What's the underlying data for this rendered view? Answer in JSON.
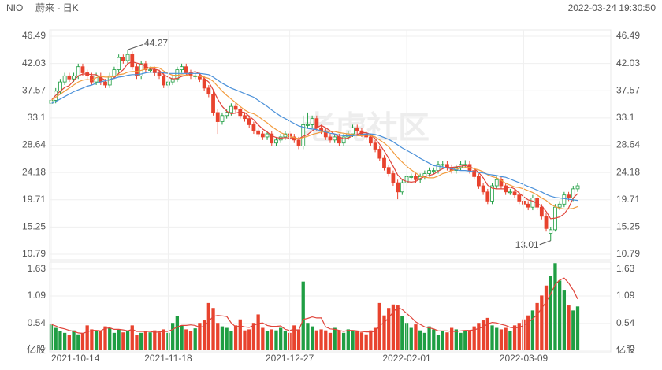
{
  "chart_data": [
    {
      "type": "candlestick",
      "title": "NIO",
      "subtitle": "蔚来 - 日K",
      "timestamp": "2022-03-24 19:30:50",
      "watermark": "老虎社区",
      "up_color": "#1f9e43",
      "down_color": "#e8432e",
      "grid": true,
      "ylim": [
        10.79,
        46.49
      ],
      "yticks": [
        10.79,
        15.25,
        19.71,
        24.18,
        28.64,
        33.1,
        37.57,
        42.03,
        46.49
      ],
      "open": [
        35.5,
        36,
        37.5,
        39,
        40,
        39.5,
        40,
        41.5,
        40.5,
        40,
        39,
        40,
        39,
        38.5,
        40,
        41,
        43,
        42.5,
        43.5,
        41.5,
        40,
        42,
        41,
        41,
        40.5,
        40,
        38.5,
        39,
        39.5,
        41,
        41.5,
        40.5,
        40,
        40,
        39.5,
        38,
        37,
        34,
        32.5,
        33.5,
        34,
        35,
        34.5,
        33.5,
        33,
        32,
        31,
        30.5,
        30,
        30.5,
        29,
        29.5,
        30,
        30.5,
        30,
        29.5,
        28.5,
        32,
        32,
        33,
        31.5,
        31,
        30,
        29.5,
        30,
        29,
        30,
        30.5,
        31.5,
        31,
        30.5,
        30,
        29,
        28,
        26.5,
        25,
        24,
        22.5,
        21,
        22.5,
        23.5,
        23.5,
        23,
        23.5,
        24,
        24.5,
        24.5,
        25.5,
        25.5,
        25,
        24.5,
        25,
        25.5,
        25.5,
        24.5,
        23.5,
        22,
        21,
        19.5,
        22,
        23,
        22,
        21,
        21,
        20.5,
        19.5,
        19,
        18.5,
        20,
        18.5,
        17,
        14.2,
        14.8,
        18.5,
        19,
        20.5,
        20,
        21.5
      ],
      "high": [
        36.5,
        38,
        39.5,
        40.5,
        40.5,
        40.5,
        42,
        42,
        41,
        40.5,
        40.5,
        40.5,
        39.5,
        40.5,
        41.5,
        43.5,
        43.5,
        44.27,
        44,
        42,
        42.5,
        42.5,
        41.5,
        41.5,
        41,
        40.5,
        39.5,
        40,
        41.5,
        42,
        42,
        41,
        40.5,
        40.5,
        40,
        38.5,
        37.5,
        34.5,
        34,
        34.5,
        35.5,
        35.5,
        35,
        34,
        33.5,
        32.5,
        31.5,
        31,
        31,
        31,
        30,
        30.5,
        31,
        31,
        30.5,
        30,
        33.5,
        34,
        33.5,
        33.5,
        32,
        31.5,
        30.5,
        30.5,
        30.5,
        30.5,
        31,
        32,
        32,
        31.5,
        31,
        30.5,
        29.5,
        28.5,
        27,
        25.5,
        24.5,
        23,
        23,
        24,
        24,
        24,
        24,
        24.5,
        25,
        25,
        26,
        26,
        26,
        25.5,
        25.5,
        26,
        26.2,
        26,
        25,
        24,
        22.5,
        21.5,
        22.5,
        23.5,
        23.5,
        22.5,
        21.5,
        21.5,
        21,
        20,
        19.5,
        20.5,
        20.5,
        19,
        17.5,
        15.3,
        19,
        19.5,
        21,
        21,
        22,
        22.5
      ],
      "low": [
        35,
        35.5,
        37,
        38.5,
        39,
        39,
        39.5,
        40,
        39.5,
        38.5,
        38.5,
        38.5,
        38,
        38,
        39.5,
        40.5,
        42,
        42,
        41,
        39.5,
        39.5,
        40.5,
        40.5,
        40,
        39.5,
        38,
        38,
        38.5,
        39,
        40.5,
        40,
        39.5,
        39.5,
        39,
        37.5,
        36.5,
        33.5,
        30.5,
        32,
        33,
        33.5,
        34,
        33,
        32.5,
        31.5,
        30.5,
        30,
        29.5,
        29.5,
        28.5,
        28.5,
        29,
        29.5,
        29.5,
        29,
        28,
        28,
        31.5,
        31.5,
        31,
        30.5,
        29.5,
        29,
        29,
        28.5,
        28.5,
        29.5,
        30,
        30.5,
        30,
        29.5,
        28.5,
        27.5,
        26,
        24.5,
        23.5,
        22,
        19.8,
        20.5,
        22,
        23,
        22.5,
        22.5,
        23,
        23.5,
        24,
        24,
        25,
        24.5,
        24,
        24,
        24.5,
        25,
        24,
        23,
        21.5,
        20.5,
        19,
        19,
        21.5,
        21.5,
        20.5,
        20.5,
        20,
        19,
        18.5,
        18,
        18,
        18,
        16.5,
        14.5,
        13.01,
        14.5,
        18,
        18.5,
        19.5,
        19.5,
        21
      ],
      "close": [
        36,
        37.5,
        39,
        40,
        39.5,
        40,
        41.5,
        40.5,
        40,
        39,
        40,
        39,
        38.5,
        40,
        41,
        43,
        42.5,
        43.5,
        41.5,
        40,
        42,
        41,
        41,
        40.5,
        40,
        38.5,
        39,
        39.5,
        41,
        41.5,
        40.5,
        40,
        40,
        39.5,
        38,
        37,
        34,
        32.5,
        33.5,
        34,
        35,
        34.5,
        33.5,
        33,
        32,
        31,
        30.5,
        30,
        30.5,
        29,
        29.5,
        30,
        30.5,
        30,
        29.5,
        28.5,
        32,
        32,
        33,
        31.5,
        31,
        30,
        29.5,
        30,
        29,
        30,
        30.5,
        31.5,
        31,
        30.5,
        30,
        29,
        28,
        26.5,
        25,
        24,
        22.5,
        21,
        22.5,
        23.5,
        23.5,
        23,
        23.5,
        24,
        24.5,
        24.5,
        25.5,
        25.5,
        25,
        24.5,
        25,
        25.5,
        25.5,
        24.5,
        23.5,
        22,
        21,
        19.5,
        22,
        23,
        22,
        21,
        21,
        20.5,
        19.5,
        19,
        18.5,
        20,
        18.5,
        17,
        15,
        14.8,
        18.5,
        19,
        20.5,
        20,
        21.5,
        22
      ],
      "series": [
        {
          "color": "#e0443a",
          "values": [
            36,
            36.8,
            37.5,
            38.1,
            38.4,
            39.2,
            40,
            40.3,
            40.3,
            40.2,
            40.2,
            39.7,
            39.3,
            39.3,
            39.7,
            40.4,
            41,
            42,
            42.3,
            42.1,
            41.9,
            41.6,
            41.1,
            41.1,
            40.9,
            40.2,
            39.8,
            39.5,
            39.6,
            39.9,
            40.1,
            40.5,
            40.7,
            40.3,
            39.6,
            39,
            37.7,
            36.2,
            35,
            34.2,
            33.8,
            33.9,
            34.1,
            34,
            33.4,
            32.8,
            32,
            31.3,
            30.8,
            30.2,
            29.9,
            29.8,
            29.9,
            29.8,
            29.9,
            29.7,
            30.1,
            30.4,
            31,
            31.5,
            31.9,
            31.5,
            31,
            30.4,
            30,
            29.7,
            29.8,
            30.2,
            30.4,
            30.7,
            30.7,
            30.4,
            29.7,
            28.8,
            27.7,
            26.5,
            25.2,
            23.8,
            23,
            22.7,
            22.6,
            22.7,
            23.2,
            23.5,
            23.7,
            23.9,
            24.4,
            24.8,
            25,
            25,
            25.1,
            25.2,
            25.3,
            25.1,
            24.8,
            24.2,
            23.3,
            22.1,
            21.6,
            21.5,
            21.5,
            21.5,
            21.8,
            21.5,
            20.8,
            20.2,
            19.7,
            19.5,
            19.1,
            18.7,
            17.8,
            16.6,
            16.7,
            16.9,
            17.4,
            18.4,
            20,
            20.7
          ]
        },
        {
          "color": "#f29b3d",
          "values": [
            36,
            36.5,
            37,
            37.5,
            38,
            38.5,
            39,
            39.3,
            39.4,
            39.3,
            39.7,
            39.9,
            39.8,
            39.8,
            39.9,
            40.2,
            40.3,
            40.6,
            40.7,
            40.7,
            40.9,
            41.1,
            41.4,
            41.4,
            41.3,
            40.8,
            40.4,
            40.1,
            40.1,
            40.2,
            40.1,
            40,
            40,
            39.9,
            39.8,
            39.6,
            39.1,
            38.3,
            37.5,
            36.8,
            36.2,
            35.6,
            35,
            34.4,
            34,
            33.8,
            33.4,
            32.8,
            32.3,
            31.7,
            31.2,
            30.7,
            30.4,
            30.1,
            29.9,
            29.7,
            29.9,
            30.1,
            30.4,
            30.6,
            30.8,
            30.8,
            30.9,
            30.9,
            30.7,
            30.6,
            30.5,
            30.4,
            30.2,
            30.2,
            30.3,
            30.2,
            30,
            29.5,
            29,
            28.4,
            27.5,
            26.6,
            25.9,
            25.2,
            24.6,
            24.1,
            23.6,
            23.4,
            23.3,
            23.3,
            23.6,
            24,
            24.2,
            24.5,
            24.7,
            24.9,
            25,
            25,
            24.8,
            24.6,
            24.3,
            23.8,
            23.5,
            23.3,
            22.9,
            22.4,
            22.1,
            21.8,
            21.7,
            21.5,
            21.2,
            20.9,
            20.5,
            20,
            19.6,
            19,
            18.6,
            18.3,
            18.2,
            18.2,
            18.3,
            18.6
          ]
        },
        {
          "color": "#4a90d9",
          "values": [
            35.5,
            35.8,
            36.2,
            36.6,
            37,
            37.4,
            37.7,
            38,
            38.3,
            38.5,
            38.8,
            39,
            39.2,
            39.4,
            39.6,
            39.8,
            39.9,
            40.1,
            40.2,
            40.2,
            40.3,
            40.5,
            40.6,
            40.6,
            40.6,
            40.5,
            40.4,
            40.4,
            40.4,
            40.4,
            40.4,
            40.4,
            40.4,
            40.4,
            40.3,
            40.2,
            39.8,
            39.3,
            38.8,
            38.4,
            38,
            37.7,
            37.4,
            37.1,
            36.8,
            36.5,
            36,
            35.5,
            35,
            34.4,
            33.9,
            33.4,
            33,
            32.6,
            32.2,
            31.8,
            31.6,
            31.4,
            31.3,
            31.2,
            31,
            30.8,
            30.6,
            30.5,
            30.3,
            30.2,
            30.2,
            30.2,
            30.3,
            30.4,
            30.5,
            30.5,
            30.4,
            30.2,
            29.9,
            29.6,
            29.2,
            28.7,
            28.2,
            27.8,
            27.4,
            27,
            26.5,
            26.1,
            25.7,
            25.3,
            25.2,
            25.1,
            24.9,
            24.8,
            24.6,
            24.5,
            24.5,
            24.4,
            24.3,
            24.2,
            24.1,
            23.9,
            23.8,
            23.7,
            23.5,
            23.4,
            23.1,
            22.8,
            22.5,
            22.2,
            21.9,
            21.6,
            21.3,
            21,
            20.6,
            20.3,
            20.1,
            20,
            19.9,
            19.8,
            19.7,
            19.6
          ]
        }
      ]
    },
    {
      "type": "bar",
      "grid": true,
      "ylim": [
        0,
        1.77
      ],
      "yticks": [
        {
          "value": 0,
          "label": "亿股"
        },
        0.54,
        1.09,
        1.63
      ],
      "categories": [
        "2021-10-14",
        null,
        null,
        null,
        null,
        null,
        null,
        null,
        null,
        null,
        null,
        null,
        null,
        null,
        null,
        null,
        null,
        null,
        null,
        null,
        null,
        null,
        null,
        null,
        null,
        null,
        "2021-11-18",
        null,
        null,
        null,
        null,
        null,
        null,
        null,
        null,
        null,
        null,
        null,
        null,
        null,
        null,
        null,
        null,
        null,
        null,
        null,
        null,
        null,
        null,
        null,
        null,
        null,
        null,
        "2021-12-27",
        null,
        null,
        null,
        null,
        null,
        null,
        null,
        null,
        null,
        null,
        null,
        null,
        null,
        null,
        null,
        null,
        null,
        null,
        null,
        null,
        null,
        null,
        null,
        null,
        null,
        "2022-02-01",
        null,
        null,
        null,
        null,
        null,
        null,
        null,
        null,
        null,
        null,
        null,
        null,
        null,
        null,
        null,
        null,
        null,
        null,
        null,
        null,
        null,
        null,
        null,
        null,
        null,
        "2022-03-09",
        null,
        null,
        null,
        null,
        null,
        null,
        null,
        null,
        null,
        null,
        null,
        null
      ],
      "values": [
        0.52,
        0.45,
        0.38,
        0.35,
        0.3,
        0.4,
        0.32,
        0.35,
        0.5,
        0.42,
        0.4,
        0.38,
        0.48,
        0.45,
        0.35,
        0.42,
        0.36,
        0.38,
        0.5,
        0.3,
        0.35,
        0.38,
        0.36,
        0.4,
        0.36,
        0.42,
        0.35,
        0.55,
        0.68,
        0.5,
        0.42,
        0.38,
        0.44,
        0.55,
        0.6,
        0.95,
        0.85,
        0.55,
        0.48,
        0.45,
        0.38,
        0.5,
        0.62,
        0.4,
        0.42,
        0.55,
        0.72,
        0.45,
        0.38,
        0.42,
        0.4,
        0.45,
        0.38,
        0.35,
        0.5,
        0.42,
        1.38,
        0.55,
        0.48,
        0.4,
        0.42,
        0.4,
        0.35,
        0.45,
        0.38,
        0.35,
        0.42,
        0.4,
        0.38,
        0.36,
        0.32,
        0.4,
        0.45,
        0.95,
        0.7,
        0.85,
        0.92,
        0.9,
        0.68,
        0.55,
        0.45,
        0.52,
        0.4,
        0.35,
        0.48,
        0.42,
        0.3,
        0.38,
        0.36,
        0.45,
        0.42,
        0.35,
        0.4,
        0.38,
        0.48,
        0.55,
        0.6,
        0.65,
        0.5,
        0.45,
        0.42,
        0.45,
        0.38,
        0.5,
        0.55,
        0.62,
        0.7,
        0.8,
        0.95,
        1.1,
        1.3,
        1.5,
        1.75,
        1.4,
        1.2,
        0.9,
        0.8,
        0.88
      ],
      "series": [
        {
          "color": "#e0443a",
          "values": [
            0.52,
            0.49,
            0.45,
            0.43,
            0.4,
            0.38,
            0.35,
            0.34,
            0.37,
            0.4,
            0.4,
            0.39,
            0.44,
            0.45,
            0.42,
            0.42,
            0.41,
            0.39,
            0.42,
            0.38,
            0.38,
            0.38,
            0.38,
            0.36,
            0.37,
            0.38,
            0.38,
            0.42,
            0.47,
            0.5,
            0.5,
            0.51,
            0.5,
            0.46,
            0.48,
            0.58,
            0.68,
            0.7,
            0.69,
            0.68,
            0.55,
            0.47,
            0.49,
            0.47,
            0.46,
            0.5,
            0.54,
            0.55,
            0.5,
            0.48,
            0.48,
            0.49,
            0.42,
            0.4,
            0.42,
            0.4,
            0.62,
            0.64,
            0.67,
            0.65,
            0.65,
            0.47,
            0.43,
            0.42,
            0.4,
            0.38,
            0.4,
            0.4,
            0.39,
            0.38,
            0.37,
            0.37,
            0.38,
            0.5,
            0.56,
            0.65,
            0.77,
            0.86,
            0.82,
            0.74,
            0.66,
            0.57,
            0.52,
            0.47,
            0.45,
            0.43,
            0.39,
            0.39,
            0.39,
            0.38,
            0.38,
            0.39,
            0.4,
            0.4,
            0.41,
            0.44,
            0.47,
            0.53,
            0.56,
            0.55,
            0.52,
            0.5,
            0.46,
            0.45,
            0.46,
            0.5,
            0.56,
            0.63,
            0.72,
            0.84,
            0.97,
            1.13,
            1.32,
            1.41,
            1.45,
            1.35,
            1.21,
            1.03
          ]
        }
      ]
    }
  ]
}
